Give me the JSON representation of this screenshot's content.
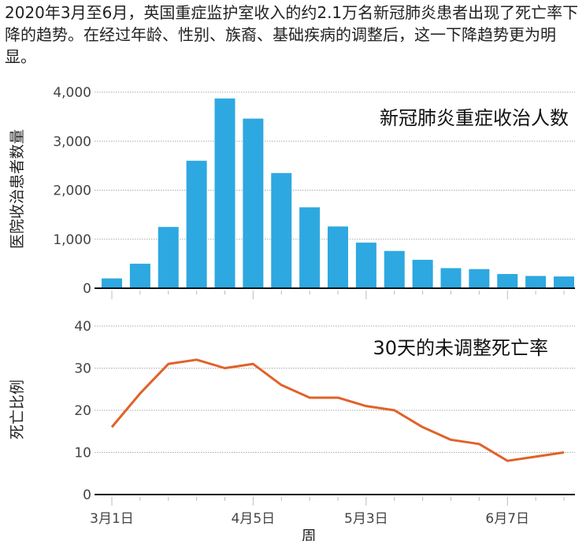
{
  "title": "2020年3月至6月，英国重症监护室收入的约2.1万名新冠肺炎患者出现了死亡率下降的趋势。在经过年龄、性别、族裔、基础疾病的调整后，这一下降趋势更为明显。",
  "chart_data": [
    {
      "type": "bar",
      "annotation": "新冠肺炎重症收治人数",
      "ylabel": "医院收治患者数量",
      "ylim": [
        0,
        4000
      ],
      "yticks": [
        "0",
        "1,000",
        "2,000",
        "3,000",
        "4,000"
      ],
      "grid": true,
      "color": "#2ea8e0",
      "x": [
        1,
        2,
        3,
        4,
        5,
        6,
        7,
        8,
        9,
        10,
        11,
        12,
        13,
        14,
        15,
        16,
        17
      ],
      "values": [
        200,
        500,
        1250,
        2600,
        3870,
        3460,
        2350,
        1650,
        1260,
        930,
        760,
        580,
        410,
        390,
        290,
        250,
        240
      ]
    },
    {
      "type": "line",
      "annotation": "30天的未调整死亡率",
      "ylabel": "死亡比例",
      "xlabel": "周",
      "ylim": [
        0,
        40
      ],
      "yticks": [
        "0",
        "10",
        "20",
        "30",
        "40"
      ],
      "grid": true,
      "color": "#e0622a",
      "x": [
        1,
        2,
        3,
        4,
        5,
        6,
        7,
        8,
        9,
        10,
        11,
        12,
        13,
        14,
        15,
        16,
        17
      ],
      "values": [
        16,
        24,
        31,
        32,
        30,
        31,
        26,
        23,
        23,
        21,
        20,
        16,
        13,
        12,
        8,
        9,
        10
      ],
      "xtick_labels": [
        {
          "week": 1,
          "label": "3月1日"
        },
        {
          "week": 6,
          "label": "4月5日"
        },
        {
          "week": 10,
          "label": "5月3日"
        },
        {
          "week": 15,
          "label": "6月7日"
        }
      ]
    }
  ]
}
